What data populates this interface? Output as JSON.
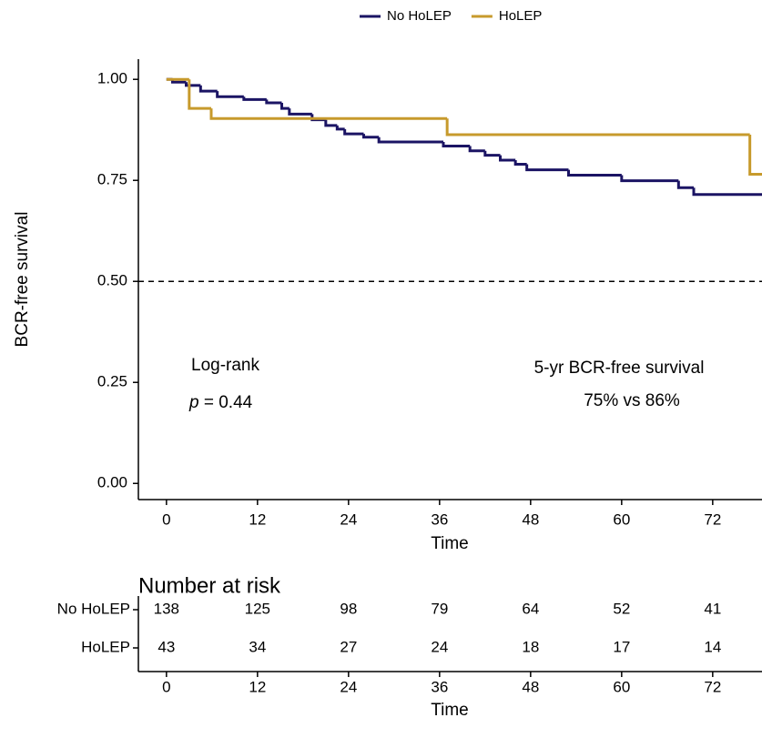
{
  "chart_data": {
    "type": "step",
    "xlabel": "Time",
    "ylabel": "BCR-free survival",
    "xlim": [
      -3.7,
      78.5
    ],
    "ylim": [
      -0.04,
      1.05
    ],
    "xticks": [
      0,
      12,
      24,
      36,
      48,
      60,
      72
    ],
    "yticks": [
      {
        "value": 0,
        "label": "0.00"
      },
      {
        "value": 0.25,
        "label": "0.25"
      },
      {
        "value": 0.5,
        "label": "0.50"
      },
      {
        "value": 0.75,
        "label": "0.75"
      },
      {
        "value": 1,
        "label": "1.00"
      }
    ],
    "reference_line": 0.5,
    "legend": "top",
    "annotations": {
      "test_name": "Log-rank",
      "p_symbol": "p",
      "p_text": "= 0.44",
      "survival_title": "5-yr BCR-free survival",
      "survival_values": "75% vs 86%"
    },
    "series": [
      {
        "name": "No HoLEP",
        "color": "#1B1464",
        "x": [
          0,
          0.8,
          2.6,
          4.5,
          6.7,
          10.2,
          13.2,
          15.2,
          16.2,
          19.2,
          21,
          22.5,
          23.5,
          26,
          28,
          36.5,
          40,
          42,
          44,
          46,
          47.5,
          53,
          60,
          67.5,
          69.5
        ],
        "values": [
          1.0,
          0.993,
          0.985,
          0.971,
          0.957,
          0.95,
          0.942,
          0.928,
          0.914,
          0.9,
          0.886,
          0.877,
          0.865,
          0.857,
          0.845,
          0.835,
          0.823,
          0.812,
          0.8,
          0.79,
          0.776,
          0.763,
          0.749,
          0.732,
          0.715
        ],
        "at_risk": [
          138,
          125,
          98,
          79,
          64,
          52,
          41
        ]
      },
      {
        "name": "HoLEP",
        "color": "#C79A2C",
        "x": [
          0,
          3.0,
          5.9,
          37,
          76.9
        ],
        "values": [
          1.0,
          0.928,
          0.903,
          0.863,
          0.765
        ],
        "at_risk": [
          43,
          34,
          27,
          24,
          18,
          17,
          14
        ]
      }
    ],
    "risk_table_title": "Number at risk"
  }
}
